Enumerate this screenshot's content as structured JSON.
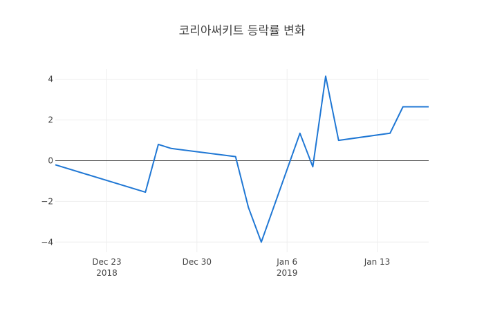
{
  "chart_data": {
    "type": "line",
    "title": "코리아써키트 등락률 변화",
    "xlabel": "",
    "ylabel": "",
    "line_color": "#1f77d4",
    "grid": true,
    "legend": "none",
    "xlim": [
      "2018-12-19",
      "2019-01-17"
    ],
    "ylim": [
      -4.5,
      4.5
    ],
    "x_ticks": [
      {
        "date": "2018-12-23",
        "label": "Dec 23",
        "sub": "2018"
      },
      {
        "date": "2018-12-30",
        "label": "Dec 30",
        "sub": ""
      },
      {
        "date": "2019-01-06",
        "label": "Jan 6",
        "sub": "2019"
      },
      {
        "date": "2019-01-13",
        "label": "Jan 13",
        "sub": ""
      }
    ],
    "y_ticks": [
      {
        "value": 4,
        "label": "4"
      },
      {
        "value": 2,
        "label": "2"
      },
      {
        "value": 0,
        "label": "0"
      },
      {
        "value": -2,
        "label": "−2"
      },
      {
        "value": -4,
        "label": "−4"
      }
    ],
    "series": [
      {
        "x": [
          "2018-12-19",
          "2018-12-26",
          "2018-12-27",
          "2018-12-28",
          "2019-01-02",
          "2019-01-03",
          "2019-01-04",
          "2019-01-07",
          "2019-01-08",
          "2019-01-09",
          "2019-01-10",
          "2019-01-14",
          "2019-01-15",
          "2019-01-17"
        ],
        "y": [
          -0.2,
          -1.55,
          0.8,
          0.6,
          0.2,
          -2.3,
          -4.0,
          1.35,
          -0.3,
          4.15,
          1.0,
          1.35,
          2.65,
          2.65
        ]
      }
    ]
  }
}
